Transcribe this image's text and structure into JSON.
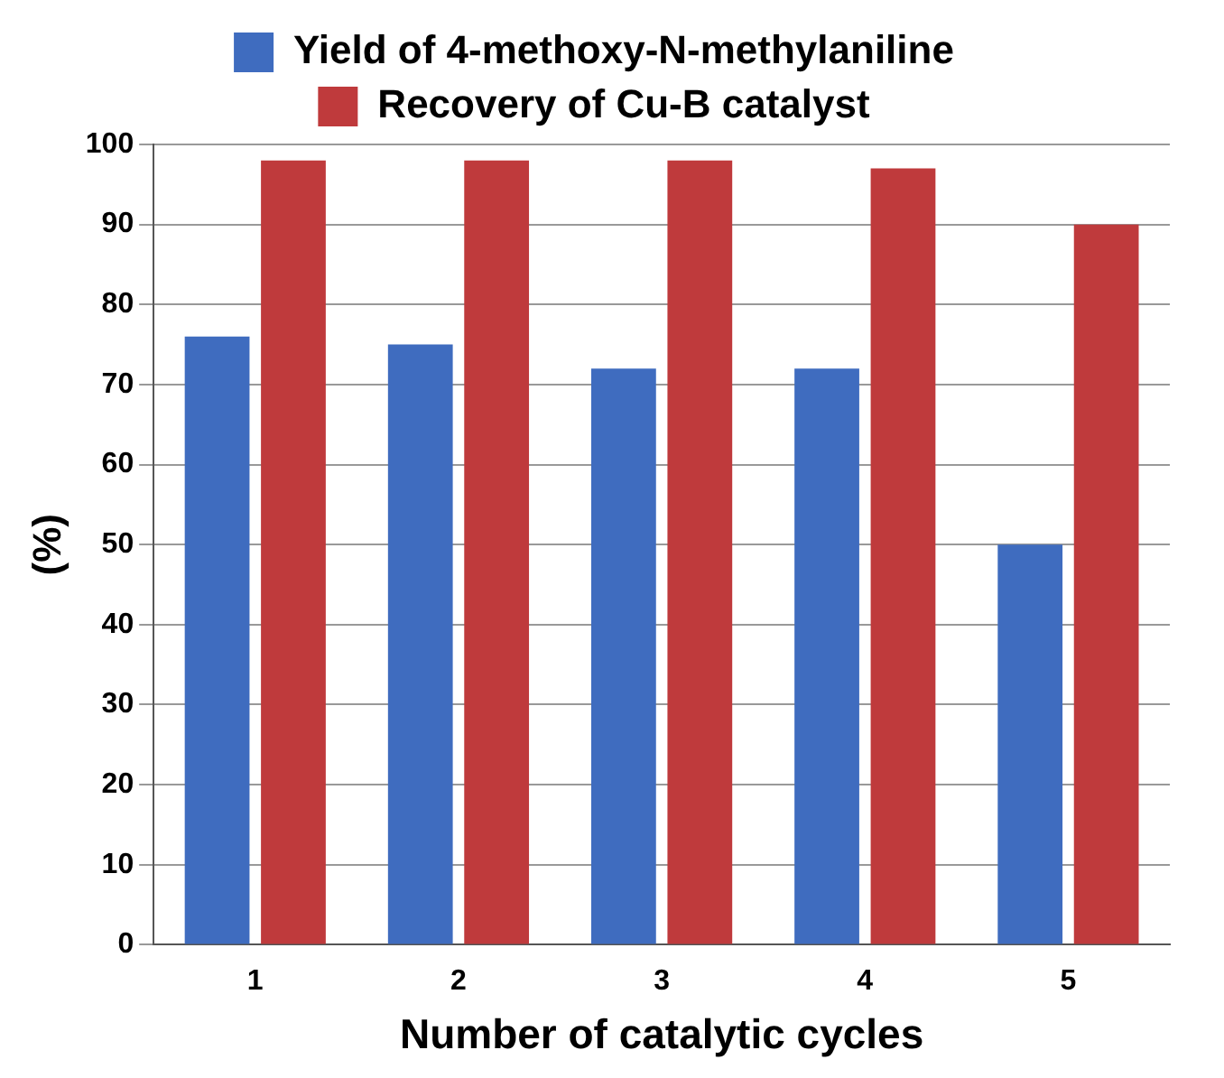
{
  "chart_data": {
    "type": "bar",
    "xlabel": "Number of catalytic cycles",
    "ylabel": "(%)",
    "categories": [
      "1",
      "2",
      "3",
      "4",
      "5"
    ],
    "series": [
      {
        "name": "Yield of 4-methoxy-N-methylaniline",
        "color": "#3f6cbf",
        "values": [
          76,
          75,
          72,
          72,
          50
        ]
      },
      {
        "name": "Recovery of Cu-B catalyst",
        "color": "#bf3a3c",
        "values": [
          98,
          98,
          98,
          97,
          90
        ]
      }
    ],
    "ylim": [
      0,
      100
    ],
    "yticks": [
      0,
      10,
      20,
      30,
      40,
      50,
      60,
      70,
      80,
      90,
      100
    ],
    "grid": "y",
    "legend": "top"
  }
}
